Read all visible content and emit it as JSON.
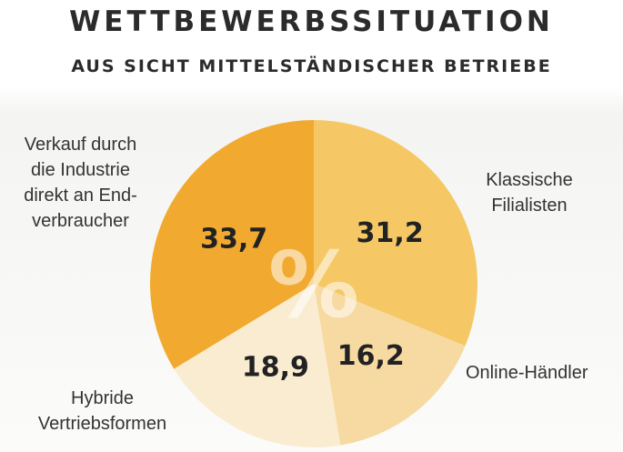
{
  "chart_data": {
    "type": "pie",
    "title": "WETTBEWERBSSITUATION",
    "subtitle": "AUS SICHT MITTELSTÄNDISCHER BETRIEBE",
    "unit_symbol": "%",
    "slices": [
      {
        "label": "Klassische\nFilialisten",
        "value": 31.2,
        "display": "31,2",
        "color": "#f5c865"
      },
      {
        "label": "Online-Händler",
        "value": 16.2,
        "display": "16,2",
        "color": "#f7daa1"
      },
      {
        "label": "Hybride\nVertriebsformen",
        "value": 18.9,
        "display": "18,9",
        "color": "#faecd0"
      },
      {
        "label": "Verkauf durch\ndie Industrie\ndirekt an End-\nverbraucher",
        "value": 33.7,
        "display": "33,7",
        "color": "#f1aa2f"
      }
    ]
  }
}
